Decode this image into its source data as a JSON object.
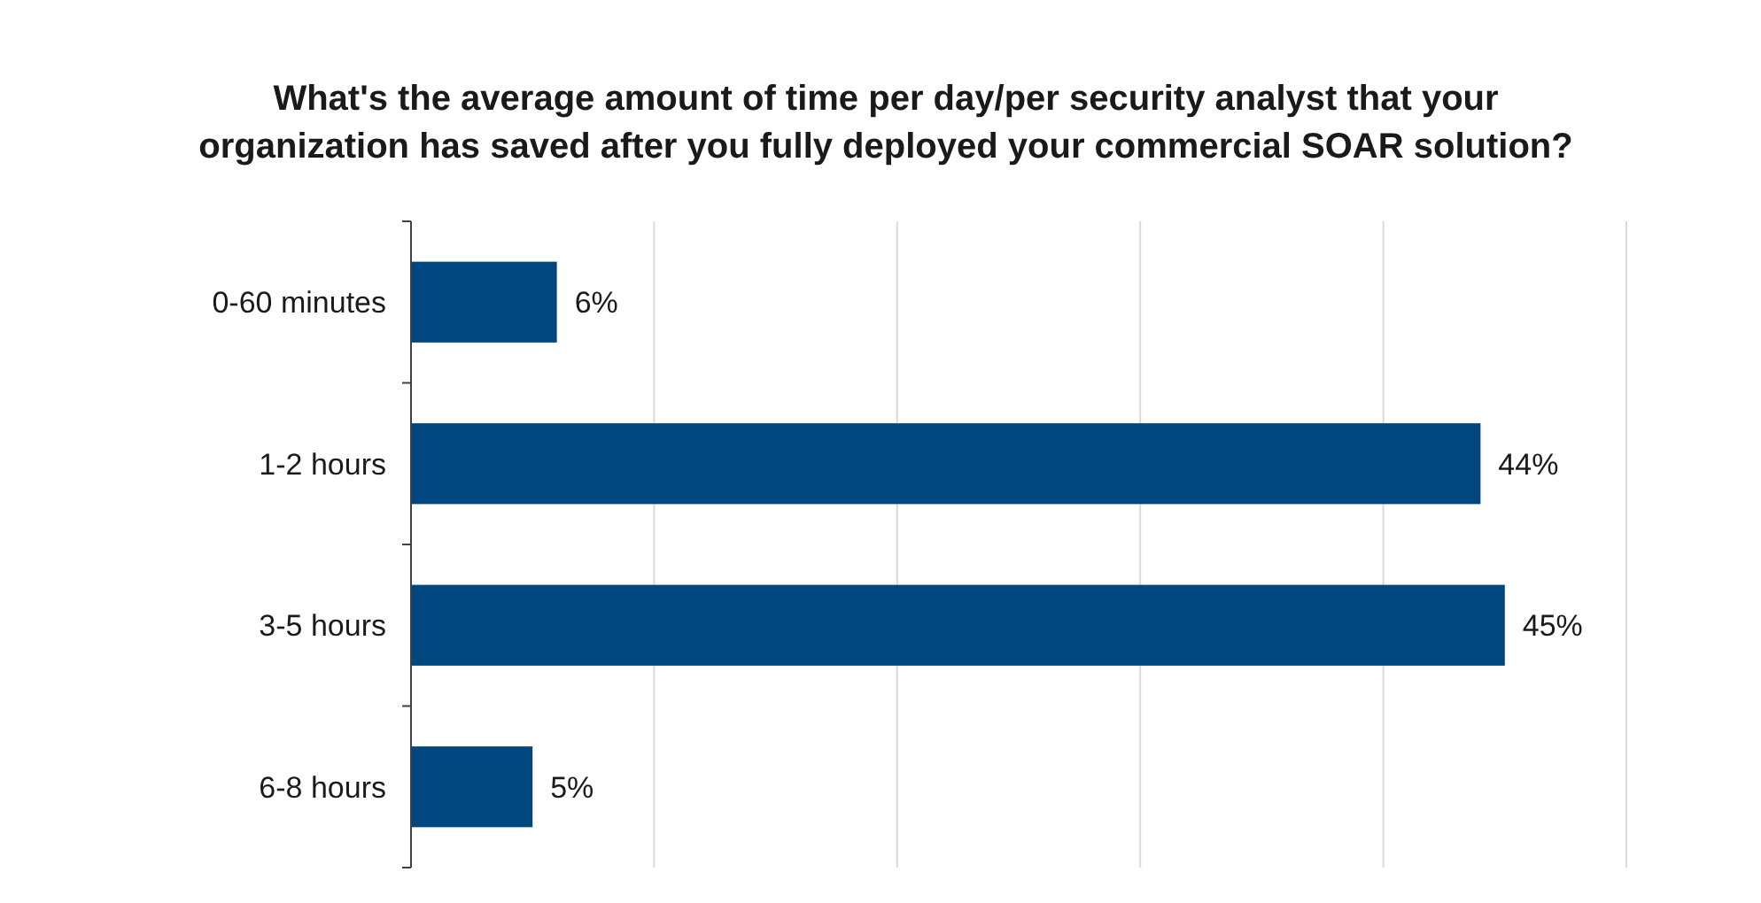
{
  "chart_data": {
    "type": "bar",
    "orientation": "horizontal",
    "title": "What's the average amount of time per day/per security analyst that your organization has saved after you fully deployed your commercial SOAR solution?",
    "categories": [
      "0-60 minutes",
      "1-2 hours",
      "3-5 hours",
      "6-8 hours"
    ],
    "values": [
      6,
      44,
      45,
      5
    ],
    "color": "#00467f",
    "value_labels": [
      "6%",
      "44%",
      "45%",
      "5%"
    ],
    "xlim": [
      0,
      50
    ],
    "xticks": [
      {
        "value": 0,
        "label": null
      },
      {
        "value": 10,
        "label": null
      },
      {
        "value": 20,
        "label": null
      },
      {
        "value": 30,
        "label": null
      },
      {
        "value": 40,
        "label": null
      },
      {
        "value": 50,
        "label": null
      }
    ],
    "grid": "x",
    "tick_labels": "y"
  }
}
